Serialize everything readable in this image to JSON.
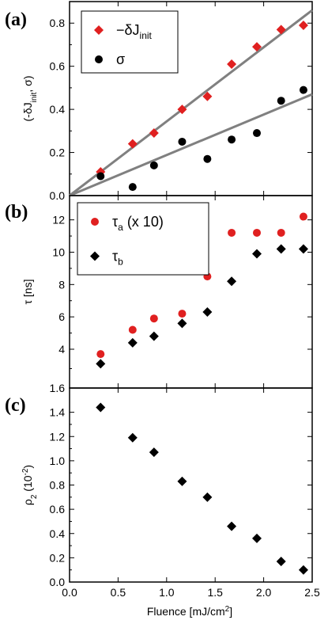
{
  "chart_data": [
    {
      "panel": "(a)",
      "type": "scatter",
      "ylabel_parts": [
        "(-δJ",
        "init",
        ", σ)"
      ],
      "ylim": [
        0,
        0.9
      ],
      "yticks": [
        0.0,
        0.2,
        0.4,
        0.6,
        0.8
      ],
      "ytick_labels": [
        "0.0",
        "0.2",
        "0.4",
        "0.6",
        "0.8"
      ],
      "xlim": [
        0,
        2.5
      ],
      "legend_position": "top-left",
      "series": [
        {
          "name_main": "−δJ",
          "name_sub": "init",
          "marker": "diamond",
          "color": "#e02020",
          "x": [
            0.32,
            0.65,
            0.87,
            1.16,
            1.42,
            1.67,
            1.93,
            2.18,
            2.41
          ],
          "y": [
            0.11,
            0.24,
            0.29,
            0.4,
            0.46,
            0.61,
            0.69,
            0.77,
            0.79
          ]
        },
        {
          "name_main": "σ",
          "name_sub": "",
          "marker": "circle",
          "color": "#000000",
          "x": [
            0.32,
            0.65,
            0.87,
            1.16,
            1.42,
            1.67,
            1.93,
            2.18,
            2.41
          ],
          "y": [
            0.09,
            0.04,
            0.14,
            0.25,
            0.17,
            0.26,
            0.29,
            0.44,
            0.49
          ]
        }
      ],
      "fit_lines": [
        {
          "color": "#808080",
          "x": [
            0,
            2.5
          ],
          "y": [
            0,
            0.86
          ]
        },
        {
          "color": "#808080",
          "x": [
            0,
            2.5
          ],
          "y": [
            0,
            0.47
          ]
        }
      ]
    },
    {
      "panel": "(b)",
      "type": "scatter",
      "ylabel_parts": [
        "τ [ns]"
      ],
      "ylim": [
        1.6,
        13.5
      ],
      "yticks": [
        1.6,
        4,
        6,
        8,
        10,
        12
      ],
      "ytick_labels": [
        "1.6",
        "4",
        "6",
        "8",
        "10",
        "12"
      ],
      "xlim": [
        0,
        2.5
      ],
      "legend_position": "top-left",
      "series": [
        {
          "name_main": "τ",
          "name_sub": "a",
          "name_suffix": " (x 10)",
          "marker": "circle",
          "color": "#e02020",
          "x": [
            0.32,
            0.65,
            0.87,
            1.16,
            1.42,
            1.67,
            1.93,
            2.18,
            2.41
          ],
          "y": [
            3.7,
            5.2,
            5.9,
            6.2,
            8.5,
            11.2,
            11.2,
            11.2,
            12.2
          ]
        },
        {
          "name_main": "τ",
          "name_sub": "b",
          "name_suffix": "",
          "marker": "diamond",
          "color": "#000000",
          "x": [
            0.32,
            0.65,
            0.87,
            1.16,
            1.42,
            1.67,
            1.93,
            2.18,
            2.41
          ],
          "y": [
            3.1,
            4.4,
            4.8,
            5.6,
            6.3,
            8.2,
            9.9,
            10.2,
            10.2
          ]
        }
      ]
    },
    {
      "panel": "(c)",
      "type": "scatter",
      "ylabel_parts": [
        "ρ",
        "2",
        " (10",
        "-2",
        ")"
      ],
      "ylim": [
        0,
        1.6
      ],
      "yticks": [
        0.0,
        0.2,
        0.4,
        0.6,
        0.8,
        1.0,
        1.2,
        1.4
      ],
      "ytick_labels": [
        "0.0",
        "0.2",
        "0.4",
        "0.6",
        "0.8",
        "1.0",
        "1.2",
        "1.4"
      ],
      "xlim": [
        0,
        2.5
      ],
      "xticks": [
        0.0,
        0.5,
        1.0,
        1.5,
        2.0,
        2.5
      ],
      "xtick_labels": [
        "0.0",
        "0.5",
        "1.0",
        "1.5",
        "2.0",
        "2.5"
      ],
      "xlabel_parts": [
        "Fluence [mJ/cm",
        "2",
        "]"
      ],
      "series": [
        {
          "name_main": "",
          "marker": "diamond",
          "color": "#000000",
          "x": [
            0.32,
            0.65,
            0.87,
            1.16,
            1.42,
            1.67,
            1.93,
            2.18,
            2.41
          ],
          "y": [
            1.44,
            1.19,
            1.07,
            0.83,
            0.7,
            0.46,
            0.36,
            0.17,
            0.1
          ]
        }
      ]
    }
  ]
}
